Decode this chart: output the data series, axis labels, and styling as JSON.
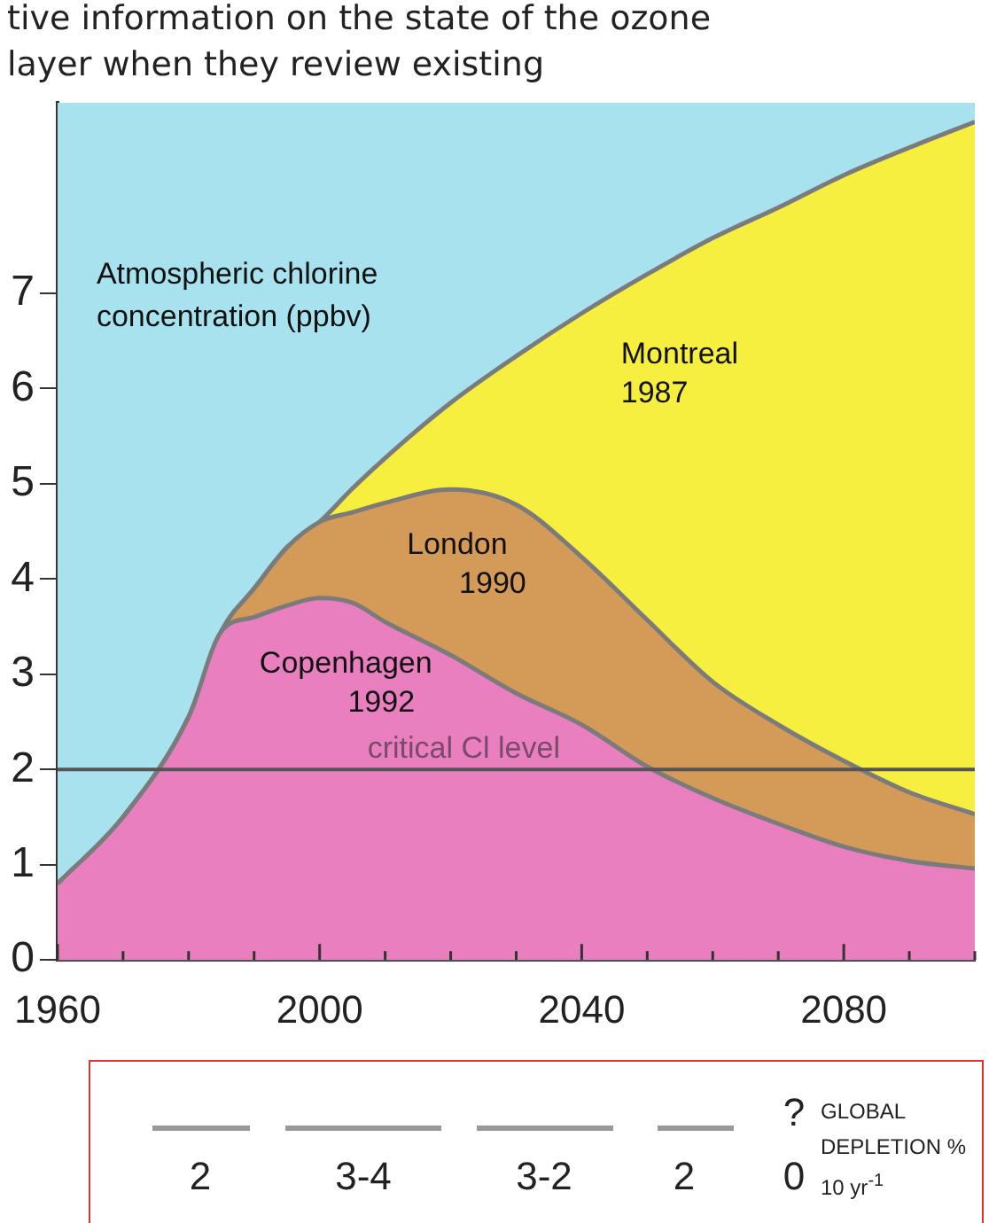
{
  "chart_data": {
    "type": "area",
    "annotations": [
      "tive information on the state of the ozone layer when they review existing",
      "2",
      "3-4",
      "3-2",
      "2",
      "?",
      "0",
      "GLOBAL DEPLETION % 10 yr$^{-1}$"
    ],
    "ylabel": "Atmospheric chlorine concentration (ppbv)",
    "x": [
      1960,
      1970,
      1980,
      1985,
      1990,
      1995,
      2000,
      2005,
      2010,
      2020,
      2030,
      2040,
      2050,
      2060,
      2070,
      2080,
      2090,
      2100
    ],
    "series": [
      {
        "name": "Copenhagen 1992",
        "color": "#ea7fc0",
        "values": [
          0.8,
          1.5,
          2.55,
          3.45,
          3.6,
          3.72,
          3.8,
          3.75,
          3.55,
          3.2,
          2.8,
          2.47,
          2.03,
          1.7,
          1.43,
          1.19,
          1.04,
          0.96
        ]
      },
      {
        "name": "London 1990",
        "color": "#d49b58",
        "values": [
          0.8,
          1.5,
          2.55,
          3.45,
          3.9,
          4.33,
          4.6,
          4.7,
          4.8,
          4.94,
          4.78,
          4.23,
          3.57,
          2.92,
          2.47,
          2.09,
          1.76,
          1.53
        ]
      },
      {
        "name": "Montreal 1987",
        "color": "#f6ef3f",
        "values": [
          0.8,
          1.5,
          2.55,
          3.45,
          3.9,
          4.33,
          4.6,
          4.95,
          5.27,
          5.85,
          6.34,
          6.79,
          7.2,
          7.58,
          7.9,
          8.24,
          8.53,
          8.8
        ]
      }
    ],
    "xlim": [
      1960,
      2100
    ],
    "xticks": [
      1960,
      {
        "value": 1970,
        "label": null
      },
      {
        "value": 1980,
        "label": null
      },
      {
        "value": 1990,
        "label": null
      },
      2000,
      {
        "value": 2010,
        "label": null
      },
      {
        "value": 2020,
        "label": null
      },
      {
        "value": 2030,
        "label": null
      },
      2040,
      {
        "value": 2050,
        "label": null
      },
      {
        "value": 2060,
        "label": null
      },
      {
        "value": 2070,
        "label": null
      },
      2080,
      {
        "value": 2090,
        "label": null
      },
      {
        "value": 2100,
        "label": null
      }
    ],
    "ylim": [
      0,
      9
    ],
    "yticks": [
      0,
      1,
      2,
      3,
      4,
      5,
      6,
      7
    ],
    "ref_lines": [
      {
        "axis": "y",
        "value": 2,
        "label": "critical Cl level",
        "color": "#555555"
      }
    ],
    "legend": false
  }
}
